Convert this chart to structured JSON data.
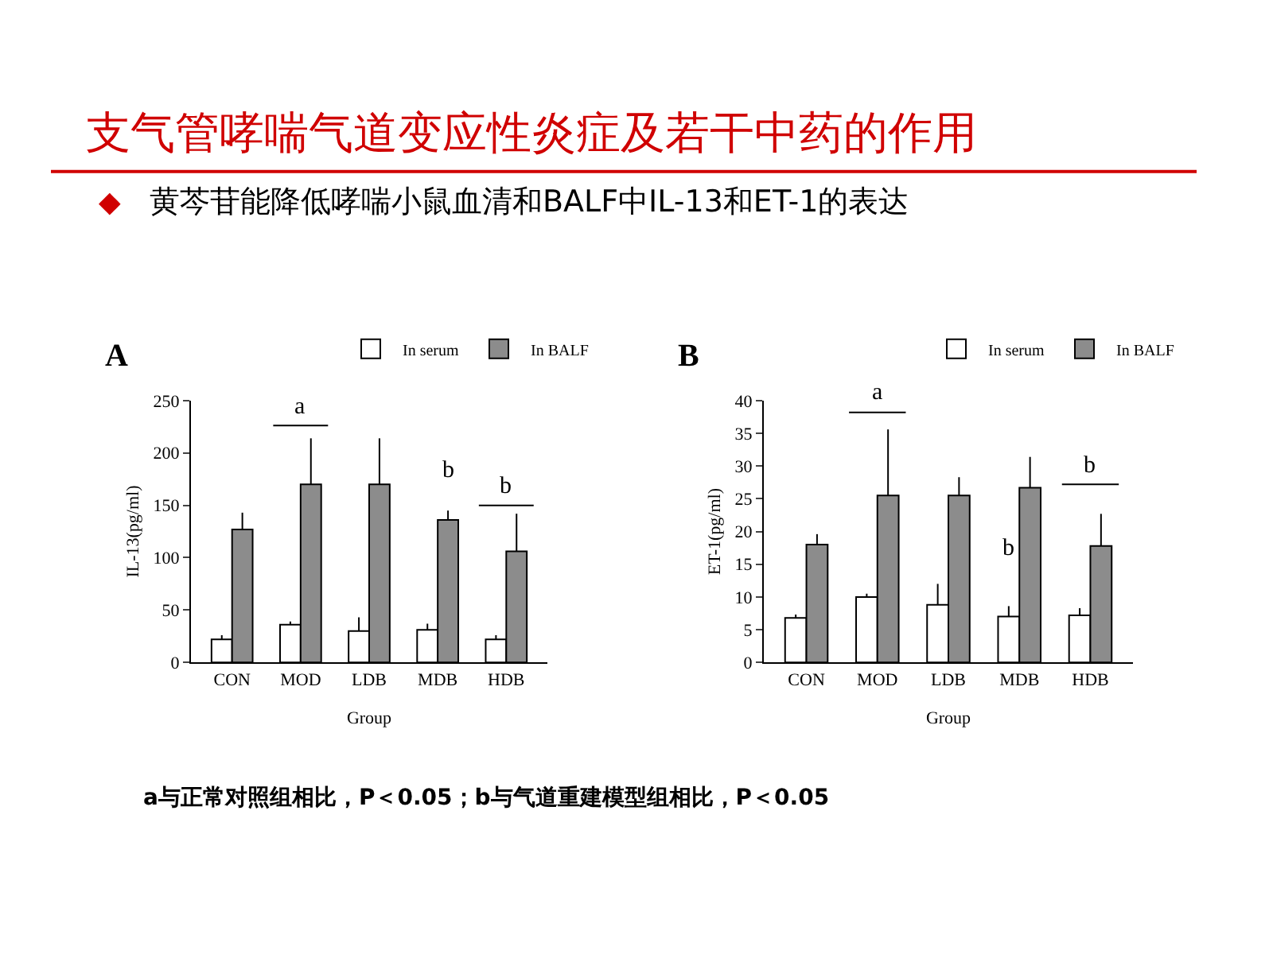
{
  "chart_data": [
    {
      "type": "bar",
      "title": "支气管哮喘气道变应性炎症及若干中药的作用",
      "subtitle": "黄芩苷能降低哮喘小鼠血清和BALF中IL-13和ET-1的表达",
      "ylabel": "IL-13(pg/ml)",
      "xlabel": "Group",
      "categories": [
        "CON",
        "MOD",
        "LDB",
        "MDB",
        "HDB"
      ],
      "ylim": [
        0,
        250
      ],
      "yticks": [
        0,
        50,
        100,
        150,
        200,
        250
      ],
      "legend": "top right",
      "series": [
        {
          "name": "In serum",
          "color": "#ffffff",
          "values": [
            22,
            36,
            30,
            31,
            22
          ],
          "errors": [
            [
              22,
              26
            ],
            [
              36,
              39
            ],
            [
              30,
              43
            ],
            [
              31,
              37
            ],
            [
              22,
              26
            ]
          ]
        },
        {
          "name": "In BALF",
          "color": "#8c8c8c",
          "values": [
            127,
            170,
            170,
            136,
            106
          ],
          "errors": [
            [
              127,
              143
            ],
            [
              170,
              214
            ],
            [
              170,
              214
            ],
            [
              136,
              145
            ],
            [
              106,
              142
            ]
          ]
        }
      ],
      "annotations": [
        "◆",
        "A",
        "a与正常对照组相比，P＜0.05；b与气道重建模型组相比，P＜0.05",
        "a",
        "b",
        "b"
      ]
    },
    {
      "type": "bar",
      "ylabel": "ET-1(pg/ml)",
      "xlabel": "Group",
      "categories": [
        "CON",
        "MOD",
        "LDB",
        "MDB",
        "HDB"
      ],
      "ylim": [
        0,
        40
      ],
      "yticks": [
        0,
        5,
        10,
        15,
        20,
        25,
        30,
        35,
        40
      ],
      "legend": "top right",
      "series": [
        {
          "name": "In serum",
          "color": "#ffffff",
          "values": [
            6.8,
            10,
            8.8,
            7.0,
            7.2
          ],
          "errors": [
            [
              6.8,
              7.3
            ],
            [
              10,
              10.5
            ],
            [
              8.8,
              12
            ],
            [
              7.0,
              8.6
            ],
            [
              7.2,
              8.3
            ]
          ]
        },
        {
          "name": "In BALF",
          "color": "#8c8c8c",
          "values": [
            18,
            25.5,
            25.5,
            26.7,
            17.8
          ],
          "errors": [
            [
              18,
              19.6
            ],
            [
              25.5,
              35.6
            ],
            [
              25.5,
              28.3
            ],
            [
              26.7,
              31.4
            ],
            [
              17.8,
              22.7
            ]
          ]
        }
      ],
      "annotations": [
        "B",
        "a",
        "b",
        "b"
      ]
    }
  ]
}
